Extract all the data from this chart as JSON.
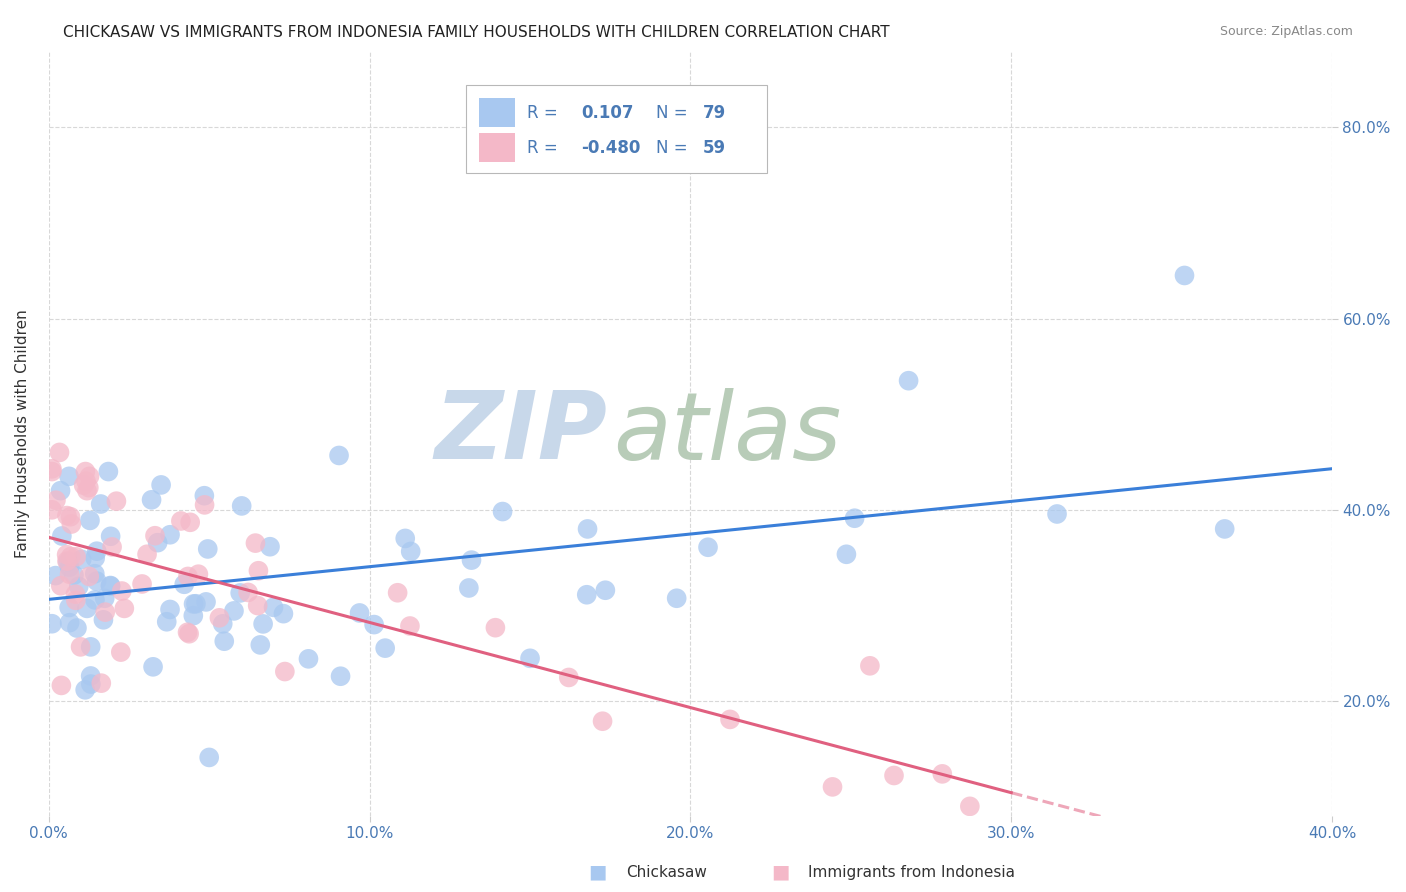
{
  "title": "CHICKASAW VS IMMIGRANTS FROM INDONESIA FAMILY HOUSEHOLDS WITH CHILDREN CORRELATION CHART",
  "source": "Source: ZipAtlas.com",
  "xlim": [
    0.0,
    0.4
  ],
  "ylim": [
    0.08,
    0.88
  ],
  "ylabel": "Family Households with Children",
  "chickasaw_color": "#a8c8f0",
  "indonesia_color": "#f4b8c8",
  "regression_blue": "#3a7fd9",
  "regression_pink": "#e06080",
  "watermark_zip": "ZIP",
  "watermark_atlas": "atlas",
  "watermark_color_zip": "#c8d8e8",
  "watermark_color_atlas": "#b0c8b0",
  "background_color": "#ffffff",
  "grid_color": "#d8d8d8",
  "title_fontsize": 11,
  "axis_label_fontsize": 11,
  "tick_fontsize": 11,
  "legend_R1": "0.107",
  "legend_N1": "79",
  "legend_R2": "-0.480",
  "legend_N2": "59",
  "legend_text_color": "#4a7ab5",
  "legend_label_color": "#333333",
  "tick_color": "#4a7ab5",
  "title_color": "#222222",
  "source_color": "#888888",
  "ylabel_color": "#333333"
}
